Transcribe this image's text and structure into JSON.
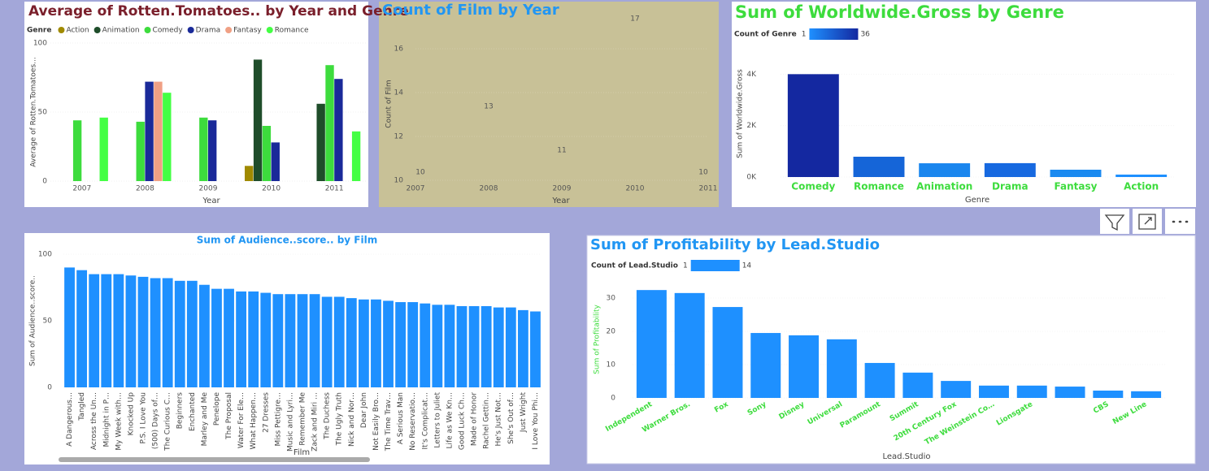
{
  "chart_data": [
    {
      "type": "bar",
      "title": "Average of Rotten.Tomatoes.. by Year and Genre",
      "legend_title": "Genre",
      "categories": [
        "2007",
        "2008",
        "2009",
        "2010",
        "2011"
      ],
      "series": [
        {
          "name": "Action",
          "color": "#a08a00",
          "values": [
            null,
            null,
            null,
            11,
            null
          ]
        },
        {
          "name": "Animation",
          "color": "#1f4d2a",
          "values": [
            null,
            null,
            null,
            88,
            56
          ]
        },
        {
          "name": "Comedy",
          "color": "#3ddc3d",
          "values": [
            44,
            43,
            46,
            40,
            84
          ]
        },
        {
          "name": "Drama",
          "color": "#1a2a99",
          "values": [
            null,
            72,
            44,
            28,
            74
          ]
        },
        {
          "name": "Fantasy",
          "color": "#f0a084",
          "values": [
            null,
            72,
            null,
            null,
            null
          ]
        },
        {
          "name": "Romance",
          "color": "#44ff44",
          "values": [
            46,
            64,
            null,
            null,
            36
          ]
        }
      ],
      "ylim": [
        0,
        100
      ],
      "yticks": [
        0,
        50,
        100
      ],
      "grid": true,
      "x_label": "Year",
      "y_label": "Average of Rotten.Tomatoes..."
    },
    {
      "type": "line",
      "title": "Count of Film by Year",
      "categories": [
        "2007",
        "2008",
        "2009",
        "2010",
        "2011"
      ],
      "values": [
        10,
        13,
        11,
        17,
        10
      ],
      "color": "#1e88e5",
      "ylim": [
        10,
        17
      ],
      "yticks": [
        10,
        12,
        14,
        16
      ],
      "grid": true,
      "data_labels": true,
      "x_label": "Year",
      "y_label": "Count of Film"
    },
    {
      "type": "bar",
      "title": "Sum of Worldwide.Gross by Genre",
      "categories": [
        "Comedy",
        "Romance",
        "Animation",
        "Drama",
        "Fantasy",
        "Action"
      ],
      "values": [
        4000,
        790,
        535,
        540,
        285,
        95
      ],
      "colors": [
        "#1428a0",
        "#1565d8",
        "#1a86ee",
        "#1769e0",
        "#1a8af0",
        "#1e90ff"
      ],
      "color_legend": {
        "title": "Count of Genre",
        "min": 1,
        "max": 36,
        "colors": [
          "#1e90ff",
          "#1428a0"
        ]
      },
      "ylim": [
        0,
        4200
      ],
      "yticks": [
        {
          "value": 0,
          "label": "0K"
        },
        {
          "value": 2000,
          "label": "2K"
        },
        {
          "value": 4000,
          "label": "4K"
        }
      ],
      "grid": true,
      "x_label": "Genre",
      "y_label": "Sum of Worldwide.Gross"
    },
    {
      "type": "bar",
      "title": "Sum of Audience..score.. by Film",
      "categories": [
        "A Dangerous…",
        "Tangled",
        "Across the Un…",
        "Midnight in P…",
        "My Week with…",
        "Knocked Up",
        "P.S. I Love You",
        "(500) Days of…",
        "The Curious C…",
        "Beginners",
        "Enchanted",
        "Marley and Me",
        "Penelope",
        "The Proposal",
        "Water For Ele…",
        "What Happen…",
        "27 Dresses",
        "Miss Pettigre…",
        "Music and Lyri…",
        "Remember Me",
        "Zack and Miri …",
        "The Duchess",
        "The Ugly Truth",
        "Nick and Nor…",
        "Dear John",
        "Not Easily Bro…",
        "The Time Trav…",
        "A Serious Man",
        "No Reservatio…",
        "It's Complicat…",
        "Letters to Juliet",
        "Life as We Kn…",
        "Good Luck Ch…",
        "Made of Honor",
        "Rachel Gettin…",
        "He's Just Not…",
        "She's Out of…",
        "Just Wright",
        "I Love You Phi…"
      ],
      "values": [
        90,
        88,
        85,
        85,
        85,
        84,
        83,
        82,
        82,
        80,
        80,
        77,
        74,
        74,
        72,
        72,
        71,
        70,
        70,
        70,
        70,
        68,
        68,
        67,
        66,
        66,
        65,
        64,
        64,
        63,
        62,
        62,
        61,
        61,
        61,
        60,
        60,
        58,
        57
      ],
      "color": "#1e90ff",
      "ylim": [
        0,
        100
      ],
      "yticks": [
        0,
        50,
        100
      ],
      "grid": true,
      "x_label": "Film",
      "y_label": "Sum of Audience..score.."
    },
    {
      "type": "bar",
      "title": "Sum of Profitability by Lead.Studio",
      "categories": [
        "Independent",
        "Warner Bros.",
        "Fox",
        "Sony",
        "Disney",
        "Universal",
        "Paramount",
        "Summit",
        "20th Century Fox",
        "The Weinstein Co…",
        "Lionsgate",
        null,
        "CBS",
        "New Line"
      ],
      "values": [
        32.4,
        31.5,
        27.3,
        19.5,
        18.8,
        17.6,
        10.5,
        7.6,
        5.1,
        3.7,
        3.7,
        3.4,
        2.2,
        2.0
      ],
      "color": "#1e90ff",
      "color_legend": {
        "title": "Count of Lead.Studio",
        "min": 1,
        "max": 14,
        "colors": [
          "#1e90ff",
          "#1e90ff"
        ]
      },
      "ylim": [
        0,
        35
      ],
      "yticks": [
        0,
        10,
        20,
        30
      ],
      "grid": true,
      "x_label": "Lead.Studio",
      "y_label": "Sum of Profitability"
    }
  ]
}
